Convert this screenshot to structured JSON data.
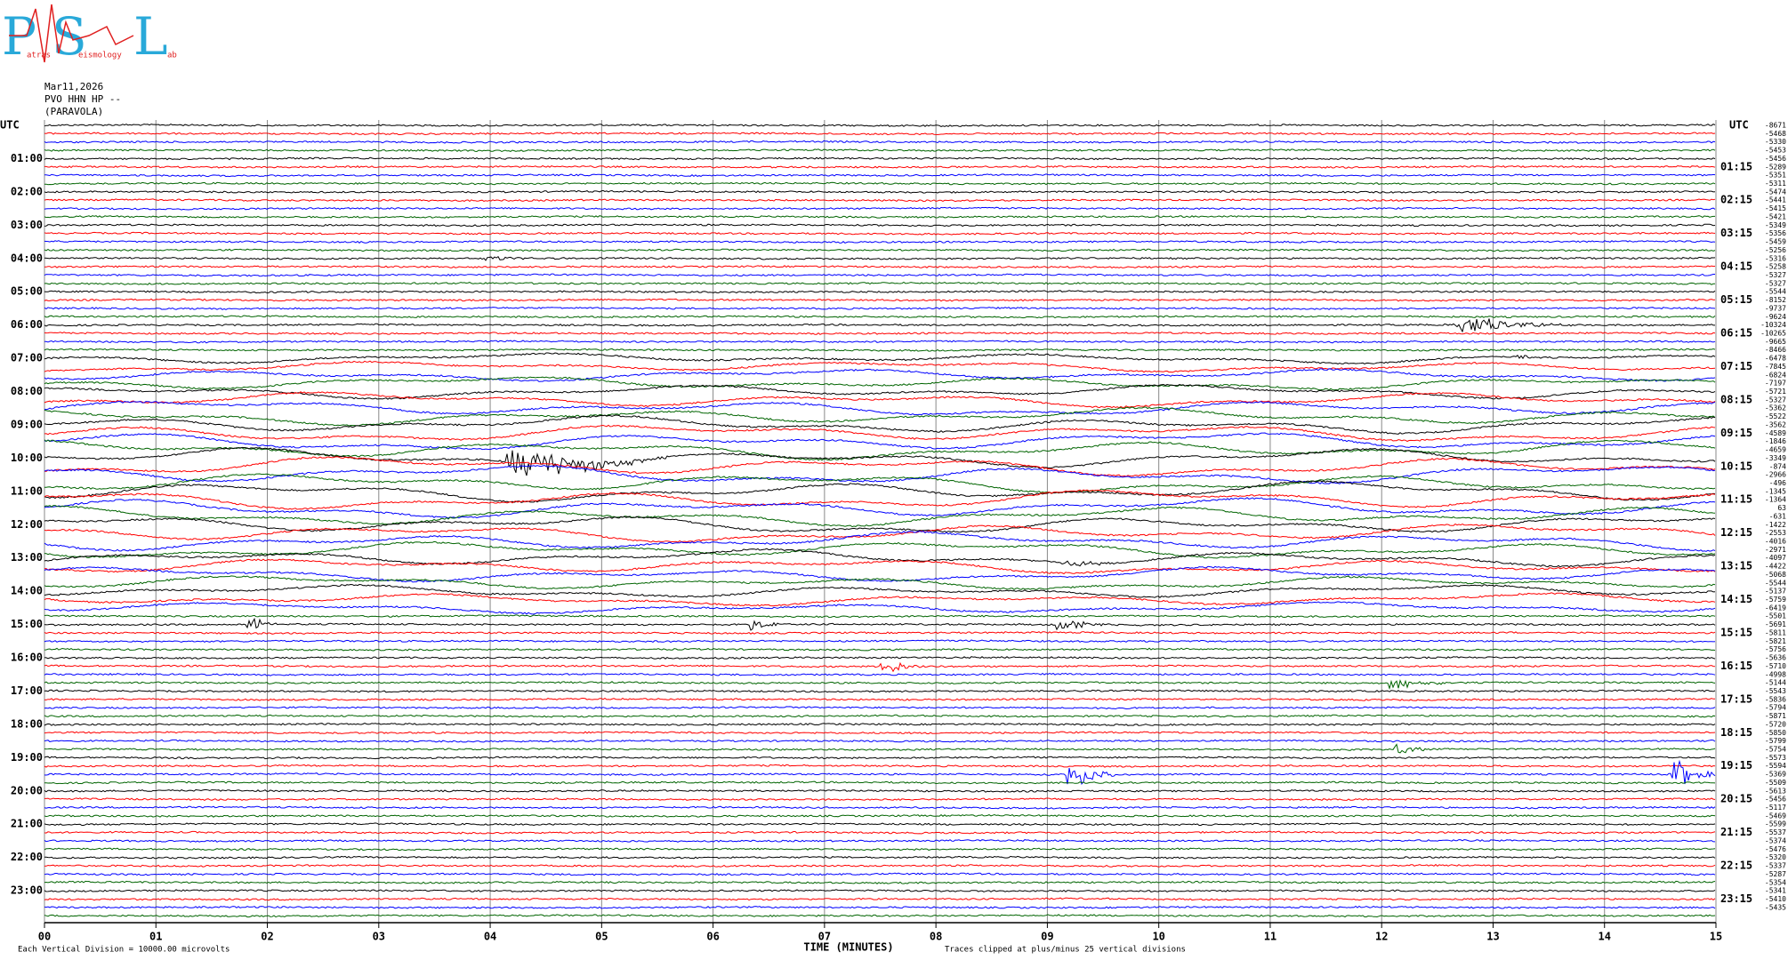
{
  "logo": {
    "big": [
      "P",
      "S",
      "L"
    ],
    "small": [
      "atras",
      "eismology",
      "ab"
    ]
  },
  "header": {
    "date": "Mar11,2026",
    "station": "PVO HHN HP --",
    "site": "(PARAVOLA)"
  },
  "left_utc": "UTC",
  "right_utc": "UTC",
  "left_hours": [
    "01:00",
    "02:00",
    "03:00",
    "04:00",
    "05:00",
    "06:00",
    "07:00",
    "08:00",
    "09:00",
    "10:00",
    "11:00",
    "12:00",
    "13:00",
    "14:00",
    "15:00",
    "16:00",
    "17:00",
    "18:00",
    "19:00",
    "20:00",
    "21:00",
    "22:00",
    "23:00"
  ],
  "right_hours": [
    "01:15",
    "02:15",
    "03:15",
    "04:15",
    "05:15",
    "06:15",
    "07:15",
    "08:15",
    "09:15",
    "10:15",
    "11:15",
    "12:15",
    "13:15",
    "14:15",
    "15:15",
    "16:15",
    "17:15",
    "18:15",
    "19:15",
    "20:15",
    "21:15",
    "22:15",
    "23:15"
  ],
  "offsets": [
    "-8671",
    "-5468",
    "-5330",
    "-5453",
    "-5456",
    "-5289",
    "-5351",
    "-5311",
    "-5474",
    "-5441",
    "-5415",
    "-5421",
    "-5349",
    "-5356",
    "-5459",
    "-5256",
    "-5316",
    "-5258",
    "-5327",
    "-5327",
    "-5544",
    "-8152",
    "-9737",
    "-9624",
    "-10324",
    "-10265",
    "-9665",
    "-8466",
    "-6478",
    "-7845",
    "-6824",
    "-7197",
    "-5721",
    "-5327",
    "-5362",
    "-5522",
    "-3562",
    "-4589",
    "-1846",
    "-4659",
    "-3349",
    "-874",
    "-2966",
    "-496",
    "-1345",
    "-1364",
    "63",
    "-631",
    "-1422",
    "-2553",
    "-4016",
    "-2971",
    "-4097",
    "-4422",
    "-5068",
    "-5544",
    "-5137",
    "-5759",
    "-6419",
    "-5501",
    "-5691",
    "-5811",
    "-5821",
    "-5756",
    "-5636",
    "-5710",
    "-4998",
    "-5144",
    "-5543",
    "-5836",
    "-5794",
    "-5871",
    "-5720",
    "-5850",
    "-5799",
    "-5754",
    "-5573",
    "-5594",
    "-5369",
    "-5509",
    "-5613",
    "-5456",
    "-5117",
    "-5469",
    "-5599",
    "-5537",
    "-5374",
    "-5476",
    "-5320",
    "-5337",
    "-5287",
    "-5354",
    "-5341",
    "-5410",
    "-5435"
  ],
  "minutes": [
    "00",
    "01",
    "02",
    "03",
    "04",
    "05",
    "06",
    "07",
    "08",
    "09",
    "10",
    "11",
    "12",
    "13",
    "14",
    "15"
  ],
  "x_title": "TIME (MINUTES)",
  "scale_note": "Each Vertical Division = 10000.00 microvolts",
  "clip_note": "Traces clipped at plus/minus 25 vertical divisions",
  "trace_colors": [
    "#000000",
    "#ff0000",
    "#0000ff",
    "#006400"
  ]
}
